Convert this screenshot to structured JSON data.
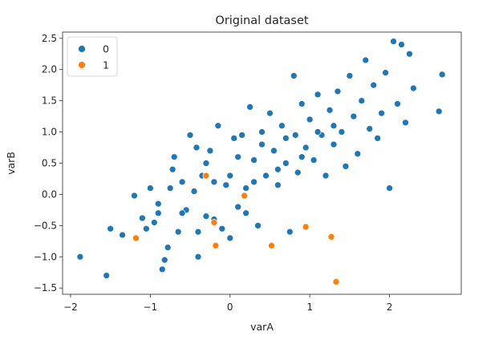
{
  "chart_data": {
    "type": "scatter",
    "title": "Original dataset",
    "xlabel": "varA",
    "ylabel": "varB",
    "xlim": [
      -2.1,
      2.9
    ],
    "ylim": [
      -1.6,
      2.6
    ],
    "xticks": [
      -2,
      -1,
      0,
      1,
      2
    ],
    "yticks": [
      -1.5,
      -1.0,
      -0.5,
      0.0,
      0.5,
      1.0,
      1.5,
      2.0,
      2.5
    ],
    "xtick_labels": [
      "−2",
      "−1",
      "0",
      "1",
      "2"
    ],
    "ytick_labels": [
      "−1.5",
      "−1.0",
      "−0.5",
      "0.0",
      "0.5",
      "1.0",
      "1.5",
      "2.0",
      "2.5"
    ],
    "grid": false,
    "legend": {
      "placement": "top-left"
    },
    "series": [
      {
        "name": "0",
        "color": "#1f77b4",
        "points": [
          [
            -1.88,
            -1.0
          ],
          [
            -1.55,
            -1.3
          ],
          [
            -1.5,
            -0.55
          ],
          [
            -1.35,
            -0.65
          ],
          [
            -1.2,
            -0.02
          ],
          [
            -1.1,
            -0.38
          ],
          [
            -1.05,
            -0.55
          ],
          [
            -0.95,
            -0.45
          ],
          [
            -0.9,
            -0.15
          ],
          [
            -0.85,
            -1.2
          ],
          [
            -0.82,
            -1.05
          ],
          [
            -0.78,
            -0.85
          ],
          [
            -0.75,
            0.1
          ],
          [
            -0.7,
            0.6
          ],
          [
            -0.72,
            0.4
          ],
          [
            -0.65,
            -0.6
          ],
          [
            -0.6,
            0.2
          ],
          [
            -0.55,
            -0.25
          ],
          [
            -0.5,
            0.95
          ],
          [
            -0.45,
            0.05
          ],
          [
            -0.42,
            0.75
          ],
          [
            -0.4,
            -1.0
          ],
          [
            -0.35,
            0.3
          ],
          [
            -0.3,
            -0.35
          ],
          [
            -0.25,
            0.7
          ],
          [
            -0.2,
            -0.4
          ],
          [
            -0.15,
            1.1
          ],
          [
            -0.1,
            -0.55
          ],
          [
            -0.05,
            0.15
          ],
          [
            0.0,
            -0.7
          ],
          [
            0.05,
            0.9
          ],
          [
            0.1,
            -0.2
          ],
          [
            0.15,
            0.95
          ],
          [
            0.2,
            0.1
          ],
          [
            0.25,
            1.4
          ],
          [
            0.3,
            0.55
          ],
          [
            0.35,
            -0.5
          ],
          [
            0.4,
            1.0
          ],
          [
            0.45,
            0.3
          ],
          [
            0.5,
            1.3
          ],
          [
            0.55,
            0.7
          ],
          [
            0.6,
            0.15
          ],
          [
            0.65,
            1.1
          ],
          [
            0.7,
            0.5
          ],
          [
            0.75,
            -0.6
          ],
          [
            0.8,
            1.9
          ],
          [
            0.82,
            0.95
          ],
          [
            0.85,
            0.35
          ],
          [
            0.9,
            1.45
          ],
          [
            0.95,
            0.75
          ],
          [
            1.0,
            1.2
          ],
          [
            1.05,
            0.55
          ],
          [
            1.1,
            1.6
          ],
          [
            1.15,
            0.95
          ],
          [
            1.2,
            0.3
          ],
          [
            1.25,
            1.35
          ],
          [
            1.3,
            0.8
          ],
          [
            1.35,
            1.65
          ],
          [
            1.4,
            1.0
          ],
          [
            1.45,
            0.45
          ],
          [
            1.5,
            1.9
          ],
          [
            1.55,
            1.25
          ],
          [
            1.6,
            0.65
          ],
          [
            1.65,
            1.5
          ],
          [
            1.7,
            2.15
          ],
          [
            1.75,
            1.05
          ],
          [
            1.8,
            1.75
          ],
          [
            1.85,
            0.9
          ],
          [
            1.9,
            1.3
          ],
          [
            1.95,
            1.95
          ],
          [
            2.0,
            0.1
          ],
          [
            2.05,
            2.45
          ],
          [
            2.1,
            1.45
          ],
          [
            2.15,
            2.4
          ],
          [
            2.2,
            1.15
          ],
          [
            2.25,
            2.25
          ],
          [
            2.3,
            1.7
          ],
          [
            2.62,
            1.33
          ],
          [
            2.66,
            1.92
          ],
          [
            -0.6,
            -0.3
          ],
          [
            -0.3,
            0.5
          ],
          [
            0.1,
            0.6
          ],
          [
            0.4,
            0.8
          ],
          [
            0.7,
            0.9
          ],
          [
            0.9,
            0.6
          ],
          [
            1.1,
            1.0
          ],
          [
            -0.2,
            0.2
          ],
          [
            0.0,
            0.3
          ],
          [
            0.3,
            0.2
          ],
          [
            0.6,
            0.4
          ],
          [
            -0.9,
            -0.3
          ],
          [
            -1.0,
            0.1
          ],
          [
            -0.4,
            -0.6
          ],
          [
            0.2,
            -0.3
          ],
          [
            1.3,
            1.1
          ]
        ]
      },
      {
        "name": "1",
        "color": "#ff7f0e",
        "points": [
          [
            -1.18,
            -0.7
          ],
          [
            -0.3,
            0.3
          ],
          [
            -0.2,
            -0.45
          ],
          [
            -0.18,
            -0.82
          ],
          [
            0.18,
            -0.02
          ],
          [
            0.52,
            -0.82
          ],
          [
            0.95,
            -0.52
          ],
          [
            1.27,
            -0.68
          ],
          [
            1.33,
            -1.4
          ]
        ]
      }
    ]
  }
}
